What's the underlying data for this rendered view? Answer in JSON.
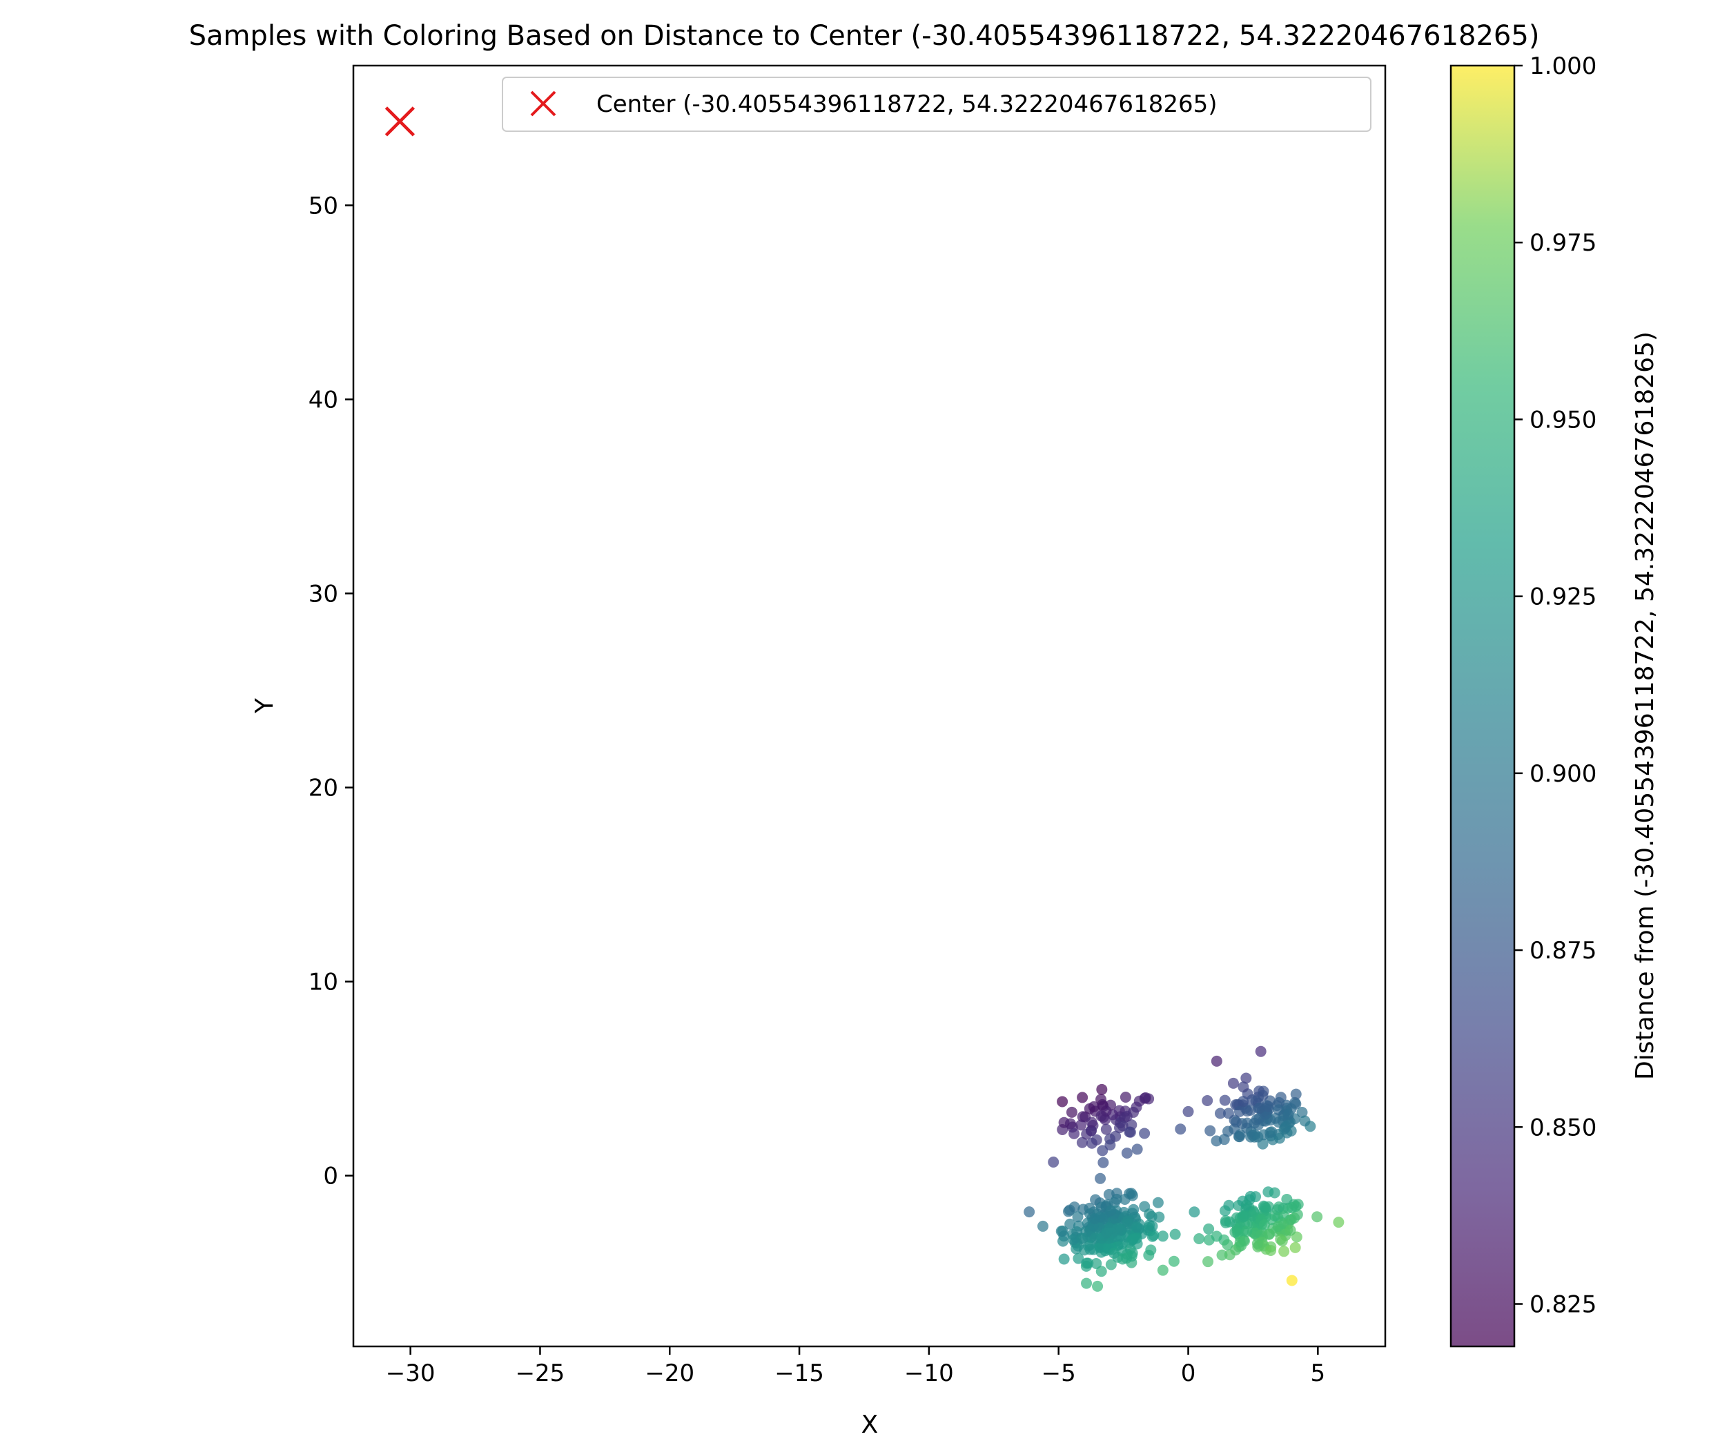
{
  "chart_data": {
    "type": "scatter",
    "title": "Samples with Coloring Based on Distance to Center (-30.40554396118722, 54.32220467618265)",
    "xlabel": "X",
    "ylabel": "Y",
    "xlim": [
      -32.2,
      7.6
    ],
    "ylim": [
      -8.8,
      57.2
    ],
    "xticks": [
      -30,
      -25,
      -20,
      -15,
      -10,
      -5,
      0,
      5
    ],
    "xtick_labels": [
      "−30",
      "−25",
      "−20",
      "−15",
      "−10",
      "−5",
      "0",
      "5"
    ],
    "yticks": [
      0,
      10,
      20,
      30,
      40,
      50
    ],
    "ytick_labels": [
      "0",
      "10",
      "20",
      "30",
      "40",
      "50"
    ],
    "grid": false,
    "legend": {
      "placement": "top-right",
      "entries": [
        {
          "label": "Center (-30.40554396118722, 54.32220467618265)",
          "marker": "x",
          "color": "#e41a1c"
        }
      ]
    },
    "center": {
      "x": -30.40554396118722,
      "y": 54.32220467618265,
      "marker": "x",
      "color": "#e41a1c"
    },
    "colorbar": {
      "label": "Distance from (-30.40554396118722, 54.32220467618265)",
      "colormap": "viridis",
      "alpha": 0.7,
      "range": [
        0.819,
        1.0
      ],
      "ticks": [
        0.825,
        0.85,
        0.875,
        0.9,
        0.925,
        0.95,
        0.975,
        1.0
      ],
      "tick_labels": [
        "0.825",
        "0.850",
        "0.875",
        "0.900",
        "0.925",
        "0.950",
        "0.975",
        "1.000"
      ]
    },
    "series": [
      {
        "clusters": [
          {
            "center": [
              -3.0,
              2.8
            ],
            "spread": [
              1.0,
              0.9
            ],
            "count": 60
          },
          {
            "center": [
              2.8,
              3.0
            ],
            "spread": [
              1.0,
              0.9
            ],
            "count": 100
          },
          {
            "center": [
              -3.0,
              -2.8
            ],
            "spread": [
              1.0,
              0.9
            ],
            "count": 220
          },
          {
            "center": [
              2.8,
              -2.6
            ],
            "spread": [
              1.0,
              0.8
            ],
            "count": 130
          }
        ],
        "extra_points": [
          [
            -5.2,
            0.7
          ],
          [
            1.1,
            5.9
          ],
          [
            2.8,
            6.4
          ],
          [
            5.8,
            -2.4
          ],
          [
            -3.5,
            -5.7
          ],
          [
            4.0,
            -5.4
          ],
          [
            0.0,
            3.3
          ],
          [
            -0.3,
            2.4
          ]
        ]
      }
    ]
  }
}
